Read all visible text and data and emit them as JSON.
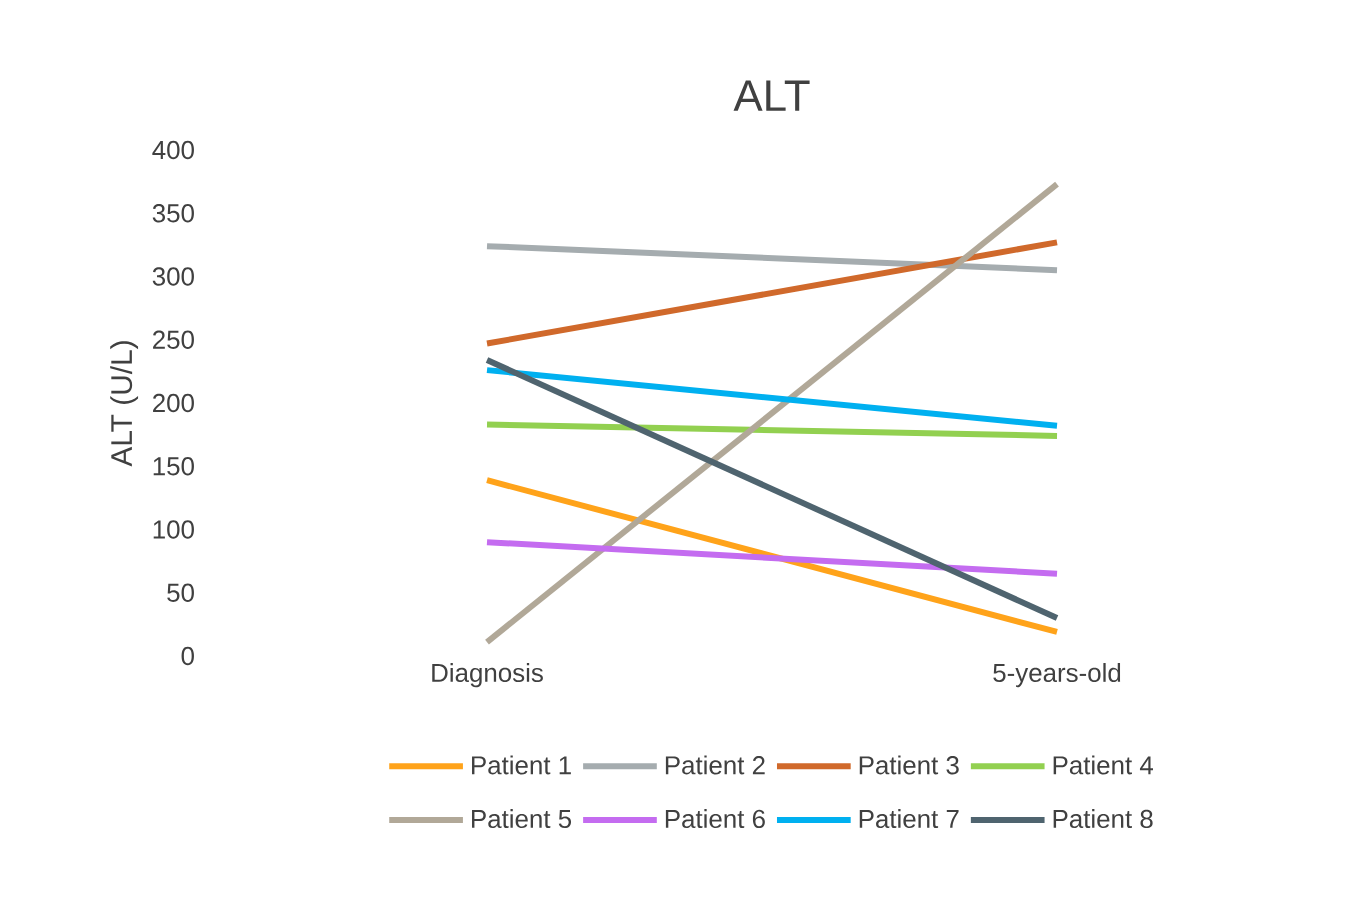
{
  "chart_data": {
    "type": "line",
    "title": "ALT",
    "ylabel": "ALT (U/L)",
    "categories": [
      "Diagnosis",
      "5-years-old"
    ],
    "ylim": [
      0,
      400
    ],
    "yticks": [
      0,
      50,
      100,
      150,
      200,
      250,
      300,
      350,
      400
    ],
    "legend": "bottom",
    "grid": false,
    "series": [
      {
        "name": "Patient 1",
        "color": "#ffa31a",
        "values": [
          139,
          19
        ]
      },
      {
        "name": "Patient 2",
        "color": "#a5acaf",
        "values": [
          324,
          305
        ]
      },
      {
        "name": "Patient 3",
        "color": "#d0692b",
        "values": [
          247,
          327
        ]
      },
      {
        "name": "Patient 4",
        "color": "#92d050",
        "values": [
          183,
          174
        ]
      },
      {
        "name": "Patient 5",
        "color": "#b1a898",
        "values": [
          11,
          373
        ]
      },
      {
        "name": "Patient 6",
        "color": "#c46cf0",
        "values": [
          90,
          65
        ]
      },
      {
        "name": "Patient 7",
        "color": "#00b0f0",
        "values": [
          226,
          182
        ]
      },
      {
        "name": "Patient 8",
        "color": "#4f646f",
        "values": [
          234,
          30
        ]
      }
    ]
  }
}
